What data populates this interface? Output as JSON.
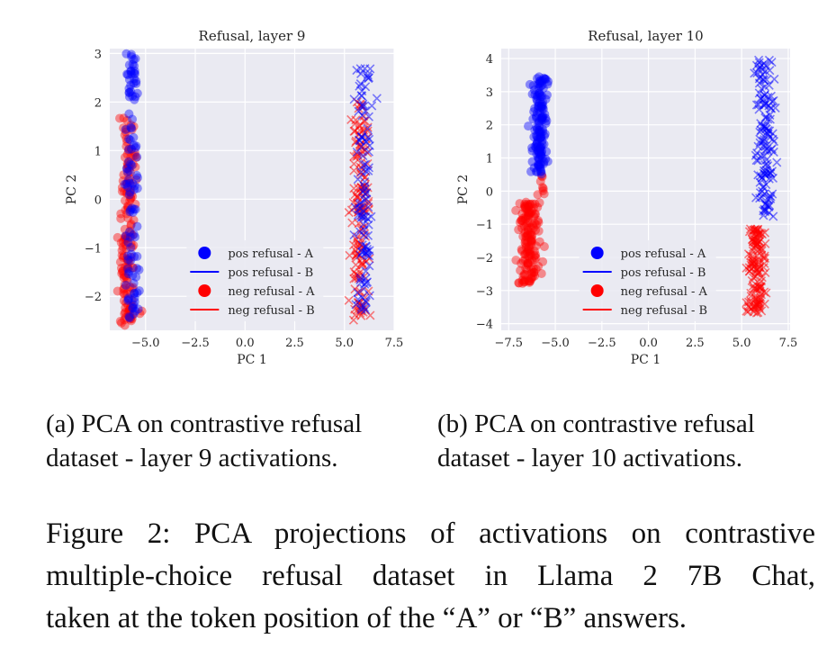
{
  "chart_data": [
    {
      "type": "scatter",
      "title": "Refusal, layer 9",
      "xlabel": "PC 1",
      "ylabel": "PC 2",
      "xlim": [
        -6.8,
        7.5
      ],
      "ylim": [
        -2.7,
        3.1
      ],
      "xticks": [
        -5.0,
        -2.5,
        0.0,
        2.5,
        5.0,
        7.5
      ],
      "xtick_labels": [
        "−5.0",
        "−2.5",
        "0.0",
        "2.5",
        "5.0",
        "7.5"
      ],
      "yticks": [
        -2,
        -1,
        0,
        1,
        2,
        3
      ],
      "ytick_labels": [
        "−2",
        "−1",
        "0",
        "1",
        "2",
        "3"
      ],
      "grid": true,
      "legend_position": "lower-center",
      "series": [
        {
          "name": "pos refusal - A",
          "marker": "circle",
          "color": "#0000ff",
          "clusters": [
            {
              "x_center": -5.7,
              "x_spread": 0.35,
              "y_min": -2.5,
              "y_max": 3.0,
              "count": 110
            }
          ]
        },
        {
          "name": "pos refusal - B",
          "marker": "x",
          "color": "#0000ff",
          "clusters": [
            {
              "x_center": 6.0,
              "x_spread": 0.45,
              "y_min": -2.3,
              "y_max": 2.7,
              "count": 110
            }
          ]
        },
        {
          "name": "neg refusal - A",
          "marker": "circle",
          "color": "#ff0000",
          "clusters": [
            {
              "x_center": -5.9,
              "x_spread": 0.4,
              "y_min": -2.6,
              "y_max": 1.7,
              "count": 150
            }
          ]
        },
        {
          "name": "neg refusal - B",
          "marker": "x",
          "color": "#ff0000",
          "clusters": [
            {
              "x_center": 5.8,
              "x_spread": 0.5,
              "y_min": -2.5,
              "y_max": 2.0,
              "count": 150
            }
          ]
        }
      ]
    },
    {
      "type": "scatter",
      "title": "Refusal, layer 10",
      "xlabel": "PC 1",
      "ylabel": "PC 2",
      "xlim": [
        -7.9,
        7.6
      ],
      "ylim": [
        -4.2,
        4.3
      ],
      "xticks": [
        -7.5,
        -5.0,
        -2.5,
        0.0,
        2.5,
        5.0,
        7.5
      ],
      "xtick_labels": [
        "−7.5",
        "−5.0",
        "−2.5",
        "0.0",
        "2.5",
        "5.0",
        "7.5"
      ],
      "yticks": [
        -4,
        -3,
        -2,
        -1,
        0,
        1,
        2,
        3,
        4
      ],
      "ytick_labels": [
        "−4",
        "−3",
        "−2",
        "−1",
        "0",
        "1",
        "2",
        "3",
        "4"
      ],
      "grid": true,
      "legend_position": "lower-center",
      "series": [
        {
          "name": "pos refusal - A",
          "marker": "circle",
          "color": "#0000ff",
          "clusters": [
            {
              "x_center": -5.85,
              "x_spread": 0.4,
              "y_min": 0.5,
              "y_max": 3.5,
              "count": 140
            }
          ]
        },
        {
          "name": "pos refusal - B",
          "marker": "x",
          "color": "#0000ff",
          "clusters": [
            {
              "x_center": 6.3,
              "x_spread": 0.55,
              "y_min": -0.8,
              "y_max": 4.0,
              "count": 140
            }
          ]
        },
        {
          "name": "neg refusal - A",
          "marker": "circle",
          "color": "#ff0000",
          "clusters": [
            {
              "x_center": -6.4,
              "x_spread": 0.55,
              "y_min": -2.8,
              "y_max": -0.3,
              "count": 140
            },
            {
              "x_center": -5.7,
              "x_spread": 0.2,
              "y_min": -0.3,
              "y_max": 0.5,
              "count": 8
            }
          ]
        },
        {
          "name": "neg refusal - B",
          "marker": "x",
          "color": "#ff0000",
          "clusters": [
            {
              "x_center": 5.8,
              "x_spread": 0.5,
              "y_min": -3.7,
              "y_max": -1.0,
              "count": 140
            }
          ]
        }
      ]
    }
  ],
  "captions": {
    "a": {
      "line1": "(a) PCA on contrastive refusal",
      "line2": "dataset - layer 9 activations."
    },
    "b": {
      "line1": "(b) PCA on contrastive refusal",
      "line2": "dataset - layer 10 activations."
    },
    "figure": {
      "line1": "Figure 2: PCA projections of activations on contrastive",
      "line2": "multiple-choice refusal dataset in Llama 2 7B Chat,",
      "line3": "taken at the token position of the “A” or “B” answers."
    }
  },
  "colors": {
    "background": "#eaeaf2",
    "grid": "#ffffff",
    "blue": "#0000ff",
    "red": "#ff0000"
  }
}
